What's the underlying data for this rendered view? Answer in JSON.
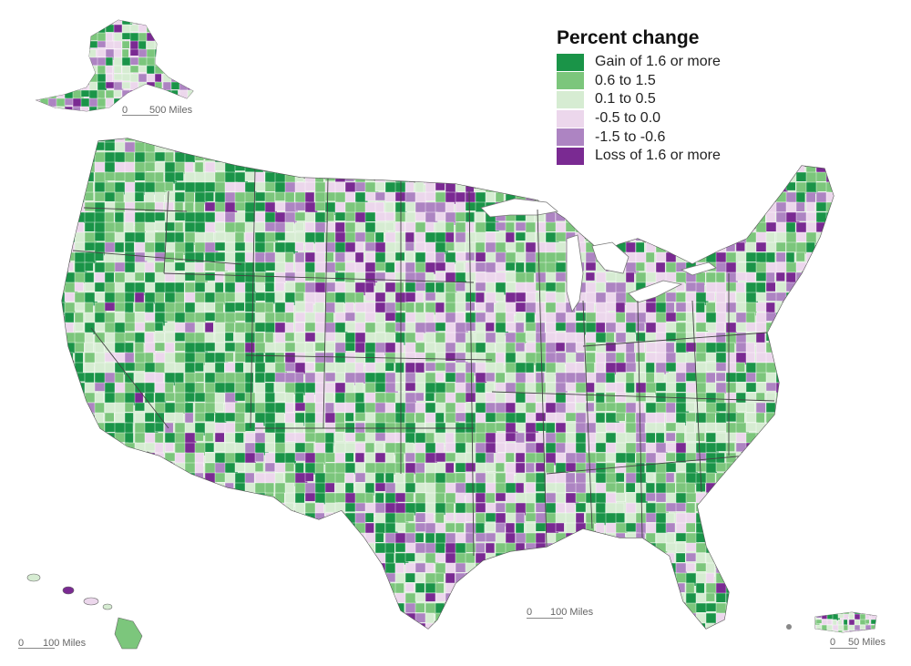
{
  "legend": {
    "title": "Percent change",
    "items": [
      {
        "label": "Gain of 1.6 or more",
        "color": "#1a9448"
      },
      {
        "label": "0.6 to 1.5",
        "color": "#7cc67c"
      },
      {
        "label": "0.1 to 0.5",
        "color": "#d6ecd2"
      },
      {
        "label": "-0.5 to 0.0",
        "color": "#ecd7ec"
      },
      {
        "label": "-1.5 to -0.6",
        "color": "#ad84c2"
      },
      {
        "label": "Loss of 1.6 or more",
        "color": "#7a2a92"
      }
    ]
  },
  "scalebars": {
    "alaska": {
      "zero": "0",
      "distance": "500 Miles"
    },
    "hawaii": {
      "zero": "0",
      "distance": "100 Miles"
    },
    "conus": {
      "zero": "0",
      "distance": "100 Miles"
    },
    "puerto_rico": {
      "zero": "0",
      "distance": "50 Miles"
    }
  }
}
